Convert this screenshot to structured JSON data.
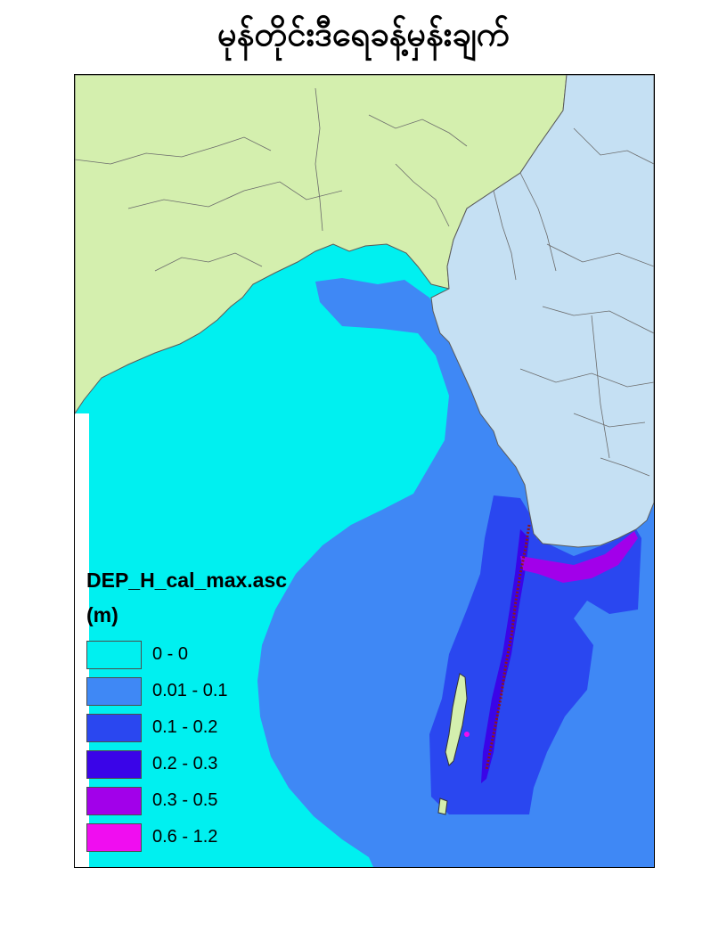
{
  "title": "မုန်တိုင်းဒီရေခန့်မှန်းချက်",
  "legend": {
    "title": "DEP_H_cal_max.asc",
    "units": "(m)",
    "classes": [
      {
        "label": "0 - 0",
        "color": "#00f0f0"
      },
      {
        "label": "0.01 - 0.1",
        "color": "#3f88f5"
      },
      {
        "label": "0.1 - 0.2",
        "color": "#2a47f0"
      },
      {
        "label": "0.2 - 0.3",
        "color": "#3a04e8"
      },
      {
        "label": "0.3 - 0.5",
        "color": "#a200ea"
      },
      {
        "label": "0.6 - 1.2",
        "color": "#f00df0"
      }
    ]
  },
  "colors": {
    "land_west": "#d4efae",
    "land_myanmar": "#c5e0f3",
    "border": "#5a5a5a"
  }
}
